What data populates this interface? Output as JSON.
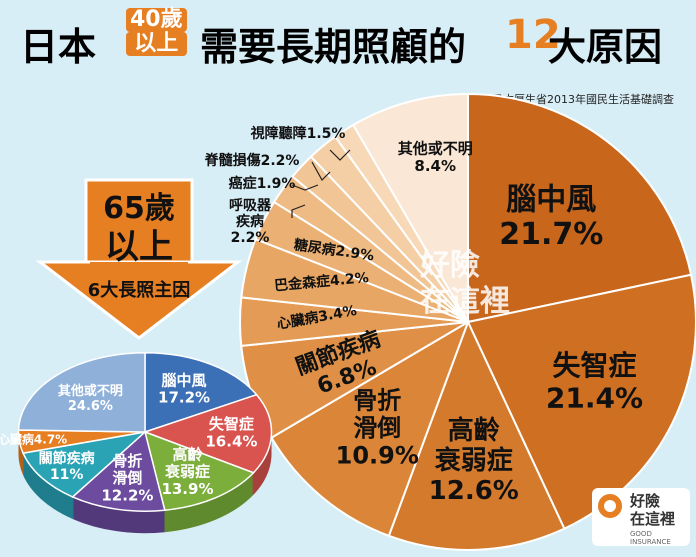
{
  "header": {
    "t1": "日本",
    "t2a": "40歲",
    "t2b": "以上",
    "t3": "需要長期照顧的",
    "t4": "12",
    "t5": "大原因",
    "source": "日本厚生省2013年國民生活基礎調查"
  },
  "arrow": {
    "line1": "65歲",
    "line2": "以上",
    "line3": "6大長照主因"
  },
  "watermark": {
    "line1": "好險",
    "line2": "在這裡",
    "sub": "GOOD INSURANCE"
  },
  "logo": {
    "line1": "好險",
    "line2": "在這裡",
    "sub": "GOOD INSURANCE"
  },
  "colors": {
    "orange": "#e67e22",
    "orange_light": "#f4b183",
    "blue": "#3b6fb6",
    "red": "#d9534f",
    "green": "#7cae3c",
    "purple": "#6d4c9f",
    "teal": "#2aa3b5"
  },
  "chart_data": [
    {
      "type": "pie",
      "title": "日本40歲以上需要長期照顧的12大原因",
      "categories": [
        "腦中風",
        "失智症",
        "高齡衰弱症",
        "骨折滑倒",
        "關節疾病",
        "心臟病",
        "巴金森症",
        "糖尿病",
        "呼吸器疾病",
        "癌症",
        "脊髓損傷",
        "視障聽障",
        "其他或不明"
      ],
      "values": [
        21.7,
        21.4,
        12.6,
        10.9,
        6.8,
        3.4,
        4.2,
        2.9,
        2.2,
        1.9,
        2.2,
        1.5,
        8.4
      ],
      "labels": [
        "腦中風 21.7%",
        "失智症 21.4%",
        "高齡衰弱症 12.6%",
        "骨折滑倒 10.9%",
        "關節疾病 6.8%",
        "心臟病3.4%",
        "巴金森症4.2%",
        "糖尿病2.9%",
        "呼吸器疾病 2.2%",
        "癌症1.9%",
        "脊髓損傷2.2%",
        "視障聽障1.5%",
        "其他或不明 8.4%"
      ],
      "display_labels": {
        "stroke": [
          "腦中風",
          "21.7%"
        ],
        "dementia": [
          "失智症",
          "21.4%"
        ],
        "frailty": [
          "高齡",
          "衰弱症",
          "12.6%"
        ],
        "fracture": [
          "骨折",
          "滑倒",
          "10.9%"
        ],
        "joint": [
          "關節疾病",
          "6.8%"
        ],
        "heart": "心臟病3.4%",
        "parkinson": "巴金森症4.2%",
        "diabetes": "糖尿病2.9%",
        "respiratory": [
          "呼吸器",
          "疾病",
          "2.2%"
        ],
        "cancer": "癌症1.9%",
        "spinal": "脊髓損傷2.2%",
        "sensory": "視障聽障1.5%",
        "other": [
          "其他或不明",
          "8.4%"
        ]
      }
    },
    {
      "type": "pie",
      "title": "65歲以上 6大長照主因",
      "categories": [
        "腦中風",
        "失智症",
        "高齡衰弱症",
        "骨折滑倒",
        "關節疾病",
        "心臟病",
        "其他或不明"
      ],
      "values": [
        17.2,
        16.4,
        13.9,
        12.2,
        11,
        4.7,
        24.6
      ],
      "display_labels": {
        "stroke": [
          "腦中風",
          "17.2%"
        ],
        "dementia": [
          "失智症",
          "16.4%"
        ],
        "frailty": [
          "高齡",
          "衰弱症",
          "13.9%"
        ],
        "fracture": [
          "骨折",
          "滑倒",
          "12.2%"
        ],
        "joint": [
          "關節疾病",
          "11%"
        ],
        "heart": "心臟病4.7%",
        "other": [
          "其他或不明",
          "24.6%"
        ]
      }
    }
  ]
}
